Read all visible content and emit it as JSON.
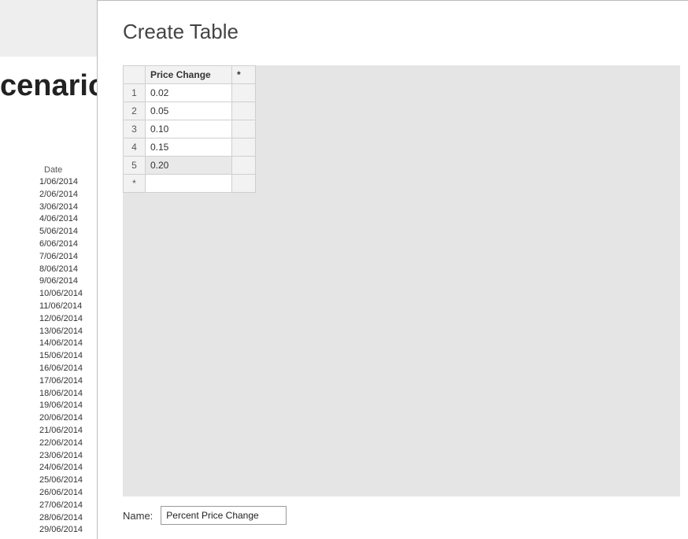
{
  "background": {
    "title_partial": "cenario",
    "date_header": "Date",
    "dates": [
      "1/06/2014",
      "2/06/2014",
      "3/06/2014",
      "4/06/2014",
      "5/06/2014",
      "6/06/2014",
      "7/06/2014",
      "8/06/2014",
      "9/06/2014",
      "10/06/2014",
      "11/06/2014",
      "12/06/2014",
      "13/06/2014",
      "14/06/2014",
      "15/06/2014",
      "16/06/2014",
      "17/06/2014",
      "18/06/2014",
      "19/06/2014",
      "20/06/2014",
      "21/06/2014",
      "22/06/2014",
      "23/06/2014",
      "24/06/2014",
      "25/06/2014",
      "26/06/2014",
      "27/06/2014",
      "28/06/2014",
      "29/06/2014"
    ]
  },
  "dialog": {
    "title": "Create Table",
    "columns": [
      "Price Change"
    ],
    "column_placeholder": "*",
    "row_placeholder": "*",
    "rows": [
      {
        "n": "1",
        "value": "0.02"
      },
      {
        "n": "2",
        "value": "0.05"
      },
      {
        "n": "3",
        "value": "0.10"
      },
      {
        "n": "4",
        "value": "0.15"
      },
      {
        "n": "5",
        "value": "0.20"
      }
    ],
    "name_label": "Name:",
    "name_value": "Percent Price Change"
  },
  "colors": {
    "grid_bg": "#e5e5e5",
    "header_bg": "#f2f2f2",
    "cell_border": "#cfcfcf",
    "dialog_border": "#bbbbbb",
    "bg_top": "#eeeeee"
  }
}
